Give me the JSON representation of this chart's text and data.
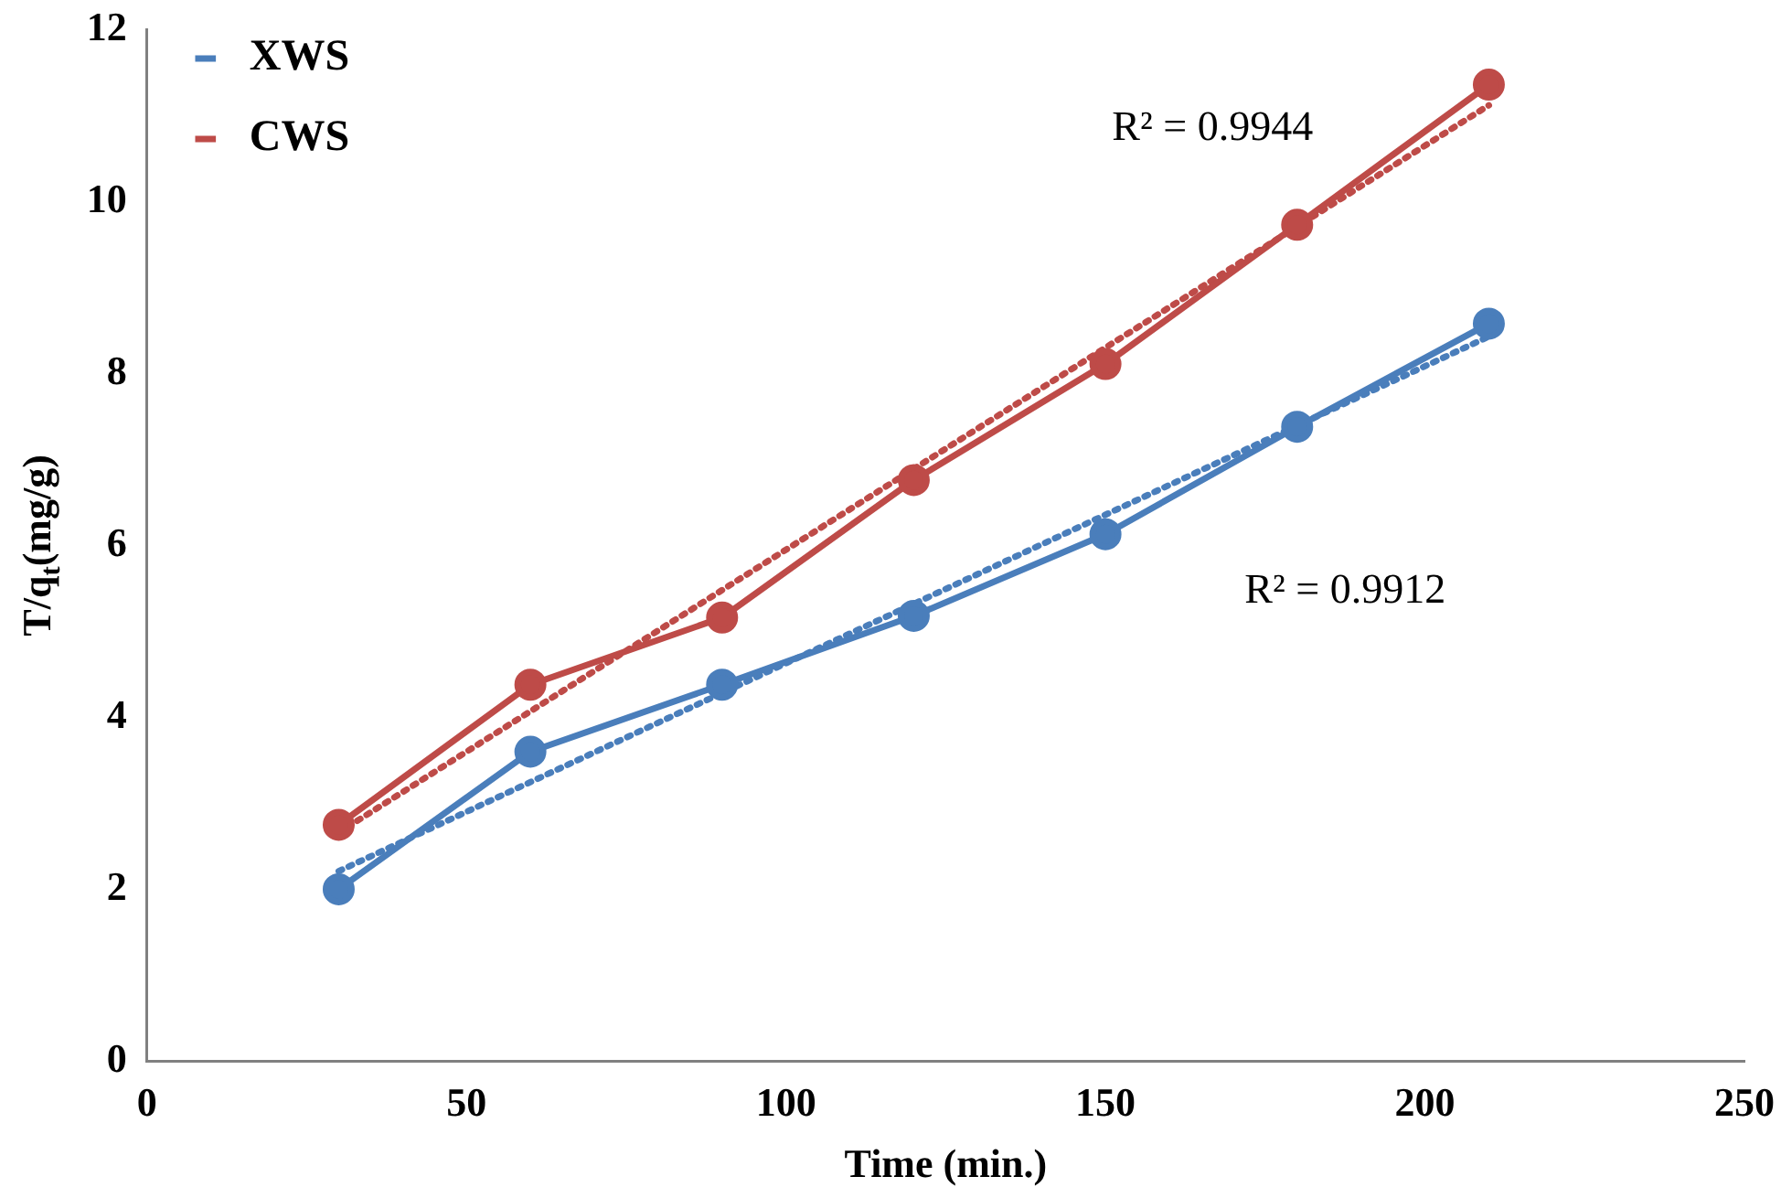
{
  "chart_data": {
    "type": "line",
    "xlabel": "Time (min.)",
    "ylabel": "T/q$_{t}$(mg/g)",
    "xlim": [
      0,
      250
    ],
    "xticks": [
      0,
      50,
      100,
      150,
      200,
      250
    ],
    "ylim": [
      0,
      12
    ],
    "yticks": [
      0,
      2,
      4,
      6,
      8,
      10,
      12
    ],
    "grid": false,
    "legend": "top left",
    "marker": "circle",
    "series": [
      {
        "name": "XWS",
        "color": "#4a7ebb",
        "x": [
          30,
          60,
          90,
          120,
          150,
          180,
          210
        ],
        "values": [
          2.0,
          3.6,
          4.38,
          5.18,
          6.13,
          7.38,
          8.58
        ]
      },
      {
        "name": "CWS",
        "color": "#be4b48",
        "x": [
          30,
          60,
          90,
          120,
          150,
          180,
          210
        ],
        "values": [
          2.75,
          4.38,
          5.16,
          6.76,
          8.11,
          9.73,
          11.36
        ]
      },
      {
        "type": "line",
        "color": "#4a7ebb",
        "x": [
          30,
          210
        ],
        "values": [
          2.21,
          8.43
        ],
        "line_style": "dotted",
        "marker": "none"
      },
      {
        "type": "line",
        "color": "#be4b48",
        "x": [
          30,
          210
        ],
        "values": [
          2.66,
          11.12
        ],
        "line_style": "dotted",
        "marker": "none"
      }
    ],
    "annotations": [
      "R² = 0.9944",
      "R² = 0.9912"
    ]
  }
}
